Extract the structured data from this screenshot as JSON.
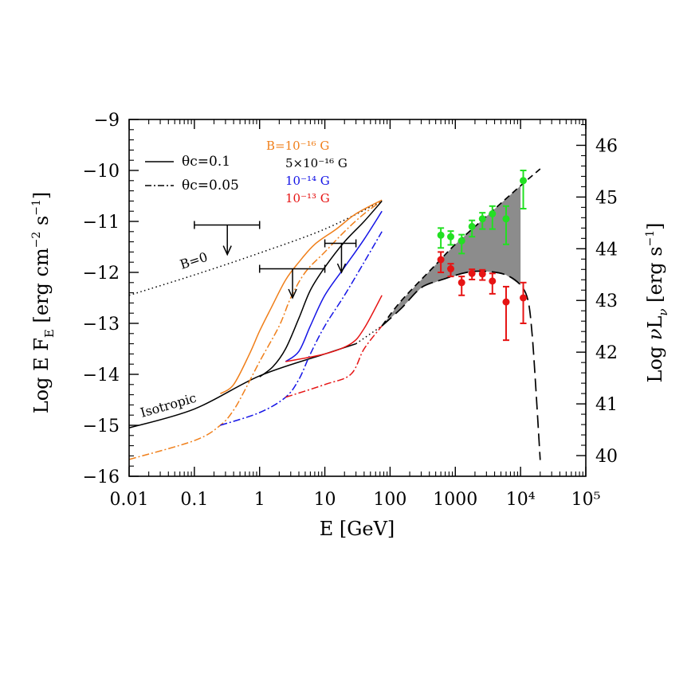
{
  "chart_data": {
    "type": "line",
    "xlabel": "E  [GeV]",
    "ylabel_left": "Log E F_E  [erg cm^-2 s^-1]",
    "ylabel_right": "Log νL_ν  [erg s^-1]",
    "x_scale": "log",
    "xlim": [
      0.01,
      100000
    ],
    "ylim": [
      -16,
      -9
    ],
    "ylim_right": [
      39.6,
      46.5
    ],
    "x_tick_labels": [
      "0.01",
      "0.1",
      "1",
      "10",
      "100",
      "1000",
      "10⁴",
      "10⁵"
    ],
    "x_tick_values": [
      0.01,
      0.1,
      1,
      10,
      100,
      1000,
      10000,
      100000
    ],
    "y_ticks": [
      -16,
      -15,
      -14,
      -13,
      -12,
      -11,
      -10,
      -9
    ],
    "y_tick_labels": [
      "−16",
      "−15",
      "−14",
      "−13",
      "−12",
      "−11",
      "−10",
      "−9"
    ],
    "y_ticks_right": [
      40,
      41,
      42,
      43,
      44,
      45,
      46
    ],
    "legend": {
      "placement": "top-left",
      "line_styles": [
        {
          "label": "θc=0.1",
          "style": "solid"
        },
        {
          "label": "θc=0.05",
          "style": "dash-dot"
        }
      ],
      "fields": [
        {
          "label": "B=10⁻¹⁶ G",
          "color": "#f07f1a"
        },
        {
          "label": "5×10⁻¹⁶ G",
          "color": "#000000"
        },
        {
          "label": "10⁻¹⁴ G",
          "color": "#1414e6"
        },
        {
          "label": "10⁻¹³ G",
          "color": "#e61414"
        }
      ]
    },
    "annotations": [
      {
        "text": "B=0",
        "x": 0.07,
        "y": -11.85,
        "rotation": -18
      },
      {
        "text": "Isotropic",
        "x": 0.018,
        "y": -14.55,
        "rotation": -16
      }
    ],
    "series": [
      {
        "name": "B=0",
        "style": "dotted",
        "color": "#000000",
        "points": [
          [
            0.01,
            -12.45
          ],
          [
            0.1,
            -12.05
          ],
          [
            1,
            -11.62
          ],
          [
            10,
            -11.15
          ],
          [
            75,
            -10.6
          ]
        ]
      },
      {
        "name": "Isotropic",
        "style": "solid",
        "color": "#000000",
        "points": [
          [
            0.01,
            -15.05
          ],
          [
            0.1,
            -14.68
          ],
          [
            1,
            -14.03
          ],
          [
            10,
            -13.6
          ],
          [
            30,
            -13.4
          ]
        ]
      },
      {
        "style": "dotted",
        "color": "#000000",
        "points": [
          [
            30,
            -13.4
          ],
          [
            75,
            -13.05
          ]
        ]
      },
      {
        "style": "solid",
        "color": "#f07f1a",
        "points": [
          [
            0.25,
            -14.38
          ],
          [
            0.4,
            -14.2
          ],
          [
            0.7,
            -13.6
          ],
          [
            1,
            -13.15
          ],
          [
            1.5,
            -12.7
          ],
          [
            2.5,
            -12.15
          ],
          [
            4,
            -11.8
          ],
          [
            7,
            -11.45
          ],
          [
            15,
            -11.15
          ],
          [
            30,
            -10.85
          ],
          [
            75,
            -10.58
          ]
        ]
      },
      {
        "style": "dashdot",
        "color": "#f07f1a",
        "points": [
          [
            0.01,
            -15.67
          ],
          [
            0.1,
            -15.3
          ],
          [
            0.25,
            -15.0
          ],
          [
            0.4,
            -14.7
          ],
          [
            0.6,
            -14.3
          ],
          [
            1,
            -13.75
          ],
          [
            2,
            -13.05
          ],
          [
            3,
            -12.5
          ],
          [
            5,
            -12.0
          ],
          [
            10,
            -11.6
          ],
          [
            20,
            -11.2
          ],
          [
            40,
            -10.85
          ],
          [
            75,
            -10.6
          ]
        ]
      },
      {
        "style": "solid",
        "color": "#000000",
        "points": [
          [
            1,
            -14.05
          ],
          [
            1.6,
            -13.85
          ],
          [
            2.5,
            -13.5
          ],
          [
            4,
            -12.9
          ],
          [
            6,
            -12.35
          ],
          [
            10,
            -11.9
          ],
          [
            20,
            -11.4
          ],
          [
            40,
            -11.0
          ],
          [
            75,
            -10.6
          ]
        ]
      },
      {
        "style": "solid",
        "color": "#1414e6",
        "points": [
          [
            2.5,
            -13.75
          ],
          [
            4,
            -13.55
          ],
          [
            6,
            -13.05
          ],
          [
            10,
            -12.45
          ],
          [
            20,
            -11.9
          ],
          [
            40,
            -11.35
          ],
          [
            75,
            -10.8
          ]
        ]
      },
      {
        "style": "dashdot",
        "color": "#1414e6",
        "points": [
          [
            0.25,
            -15.0
          ],
          [
            1,
            -14.75
          ],
          [
            2.5,
            -14.45
          ],
          [
            4,
            -14.1
          ],
          [
            6,
            -13.6
          ],
          [
            10,
            -13.05
          ],
          [
            20,
            -12.45
          ],
          [
            40,
            -11.8
          ],
          [
            75,
            -11.2
          ]
        ]
      },
      {
        "style": "solid",
        "color": "#e61414",
        "points": [
          [
            2.5,
            -13.75
          ],
          [
            10,
            -13.6
          ],
          [
            25,
            -13.4
          ],
          [
            40,
            -13.1
          ],
          [
            75,
            -12.45
          ]
        ]
      },
      {
        "style": "dashdot",
        "color": "#e61414",
        "points": [
          [
            2.5,
            -14.45
          ],
          [
            10,
            -14.2
          ],
          [
            25,
            -14.0
          ],
          [
            40,
            -13.5
          ],
          [
            75,
            -13.05
          ]
        ]
      },
      {
        "name": "upper envelope",
        "style": "dashed",
        "color": "#000000",
        "points": [
          [
            75,
            -13.05
          ],
          [
            150,
            -12.55
          ],
          [
            500,
            -11.85
          ],
          [
            1000,
            -11.45
          ],
          [
            3000,
            -10.9
          ],
          [
            10000,
            -10.3
          ],
          [
            20000,
            -9.97
          ]
        ]
      },
      {
        "name": "lower envelope",
        "style": "longdash",
        "color": "#000000",
        "points": [
          [
            75,
            -13.05
          ],
          [
            150,
            -12.7
          ],
          [
            300,
            -12.3
          ],
          [
            600,
            -12.15
          ],
          [
            1500,
            -12.0
          ],
          [
            3000,
            -11.98
          ],
          [
            6000,
            -12.05
          ],
          [
            10000,
            -12.25
          ],
          [
            13000,
            -12.55
          ],
          [
            15000,
            -13.2
          ],
          [
            17000,
            -14.2
          ],
          [
            20000,
            -15.68
          ]
        ]
      }
    ],
    "upper_limits": [
      {
        "x_low": 0.1,
        "x_high": 1,
        "y": -11.07,
        "arrow_x": 0.32,
        "arrow_to": -11.65
      },
      {
        "x_low": 1,
        "x_high": 10,
        "y": -11.93,
        "arrow_x": 3.2,
        "arrow_to": -12.5
      },
      {
        "x_low": 10,
        "x_high": 30,
        "y": -11.43,
        "arrow_x": 18,
        "arrow_to": -12.0
      }
    ],
    "data_high": {
      "color": "#22e022",
      "points": [
        {
          "x": 600,
          "y": -11.27,
          "err_up": 0.14,
          "err_down": 0.25
        },
        {
          "x": 850,
          "y": -11.3,
          "err_up": 0.11,
          "err_down": 0.16
        },
        {
          "x": 1250,
          "y": -11.38,
          "err_up": 0.12,
          "err_down": 0.25
        },
        {
          "x": 1800,
          "y": -11.1,
          "err_up": 0.12,
          "err_down": 0.2
        },
        {
          "x": 2600,
          "y": -10.95,
          "err_up": 0.12,
          "err_down": 0.2
        },
        {
          "x": 3700,
          "y": -10.85,
          "err_up": 0.15,
          "err_down": 0.3
        },
        {
          "x": 6000,
          "y": -10.95,
          "err_up": 0.25,
          "err_down": 0.5
        },
        {
          "x": 11000,
          "y": -10.2,
          "err_up": 0.2,
          "err_down": 0.55
        }
      ]
    },
    "data_low": {
      "color": "#e61414",
      "points": [
        {
          "x": 600,
          "y": -11.75,
          "err_up": 0.15,
          "err_down": 0.25
        },
        {
          "x": 850,
          "y": -11.93,
          "err_up": 0.1,
          "err_down": 0.15
        },
        {
          "x": 1250,
          "y": -12.2,
          "err_up": 0.12,
          "err_down": 0.25
        },
        {
          "x": 1800,
          "y": -12.02,
          "err_up": 0.08,
          "err_down": 0.12
        },
        {
          "x": 2600,
          "y": -12.03,
          "err_up": 0.08,
          "err_down": 0.12
        },
        {
          "x": 3700,
          "y": -12.17,
          "err_up": 0.15,
          "err_down": 0.25
        },
        {
          "x": 6000,
          "y": -12.58,
          "err_up": 0.3,
          "err_down": 0.75
        },
        {
          "x": 11000,
          "y": -12.5,
          "err_up": 0.3,
          "err_down": 0.5
        }
      ]
    }
  }
}
